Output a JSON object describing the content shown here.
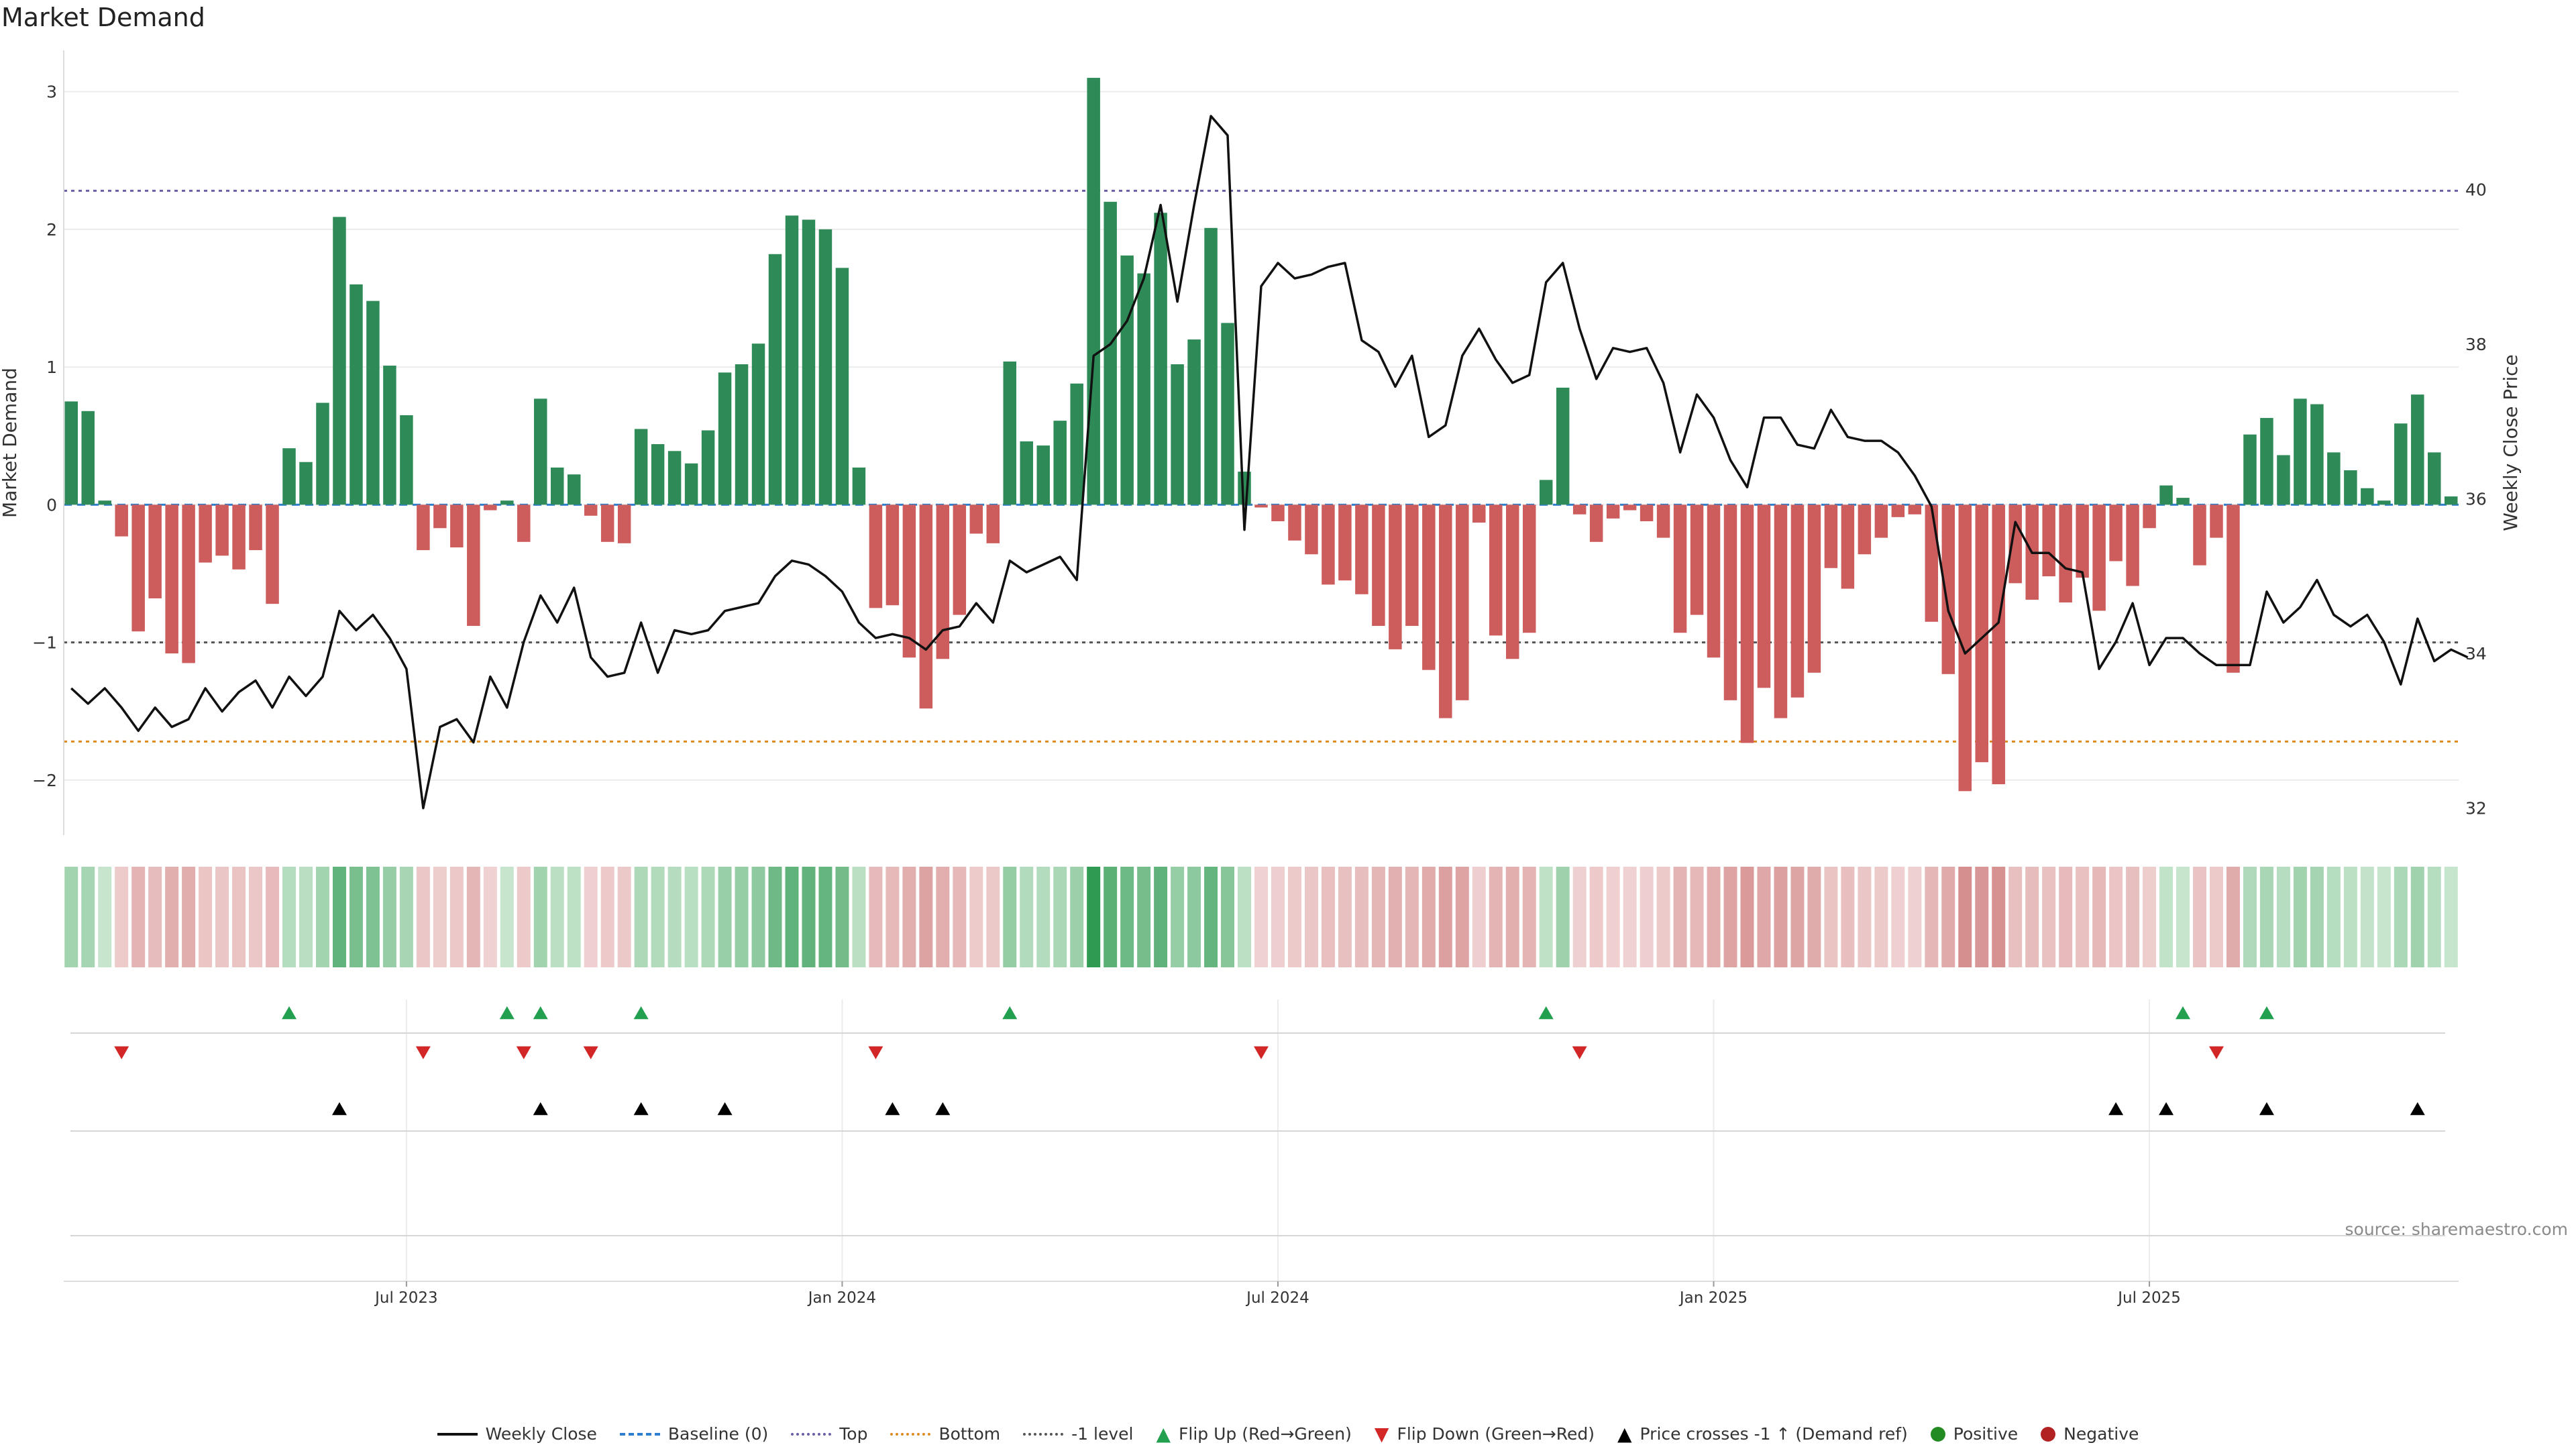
{
  "title": "Market Demand",
  "source": "source: sharemaestro.com",
  "colors": {
    "positive": "#2e8b57",
    "negative": "#cd5c5c",
    "price": "#111111",
    "top": "#6b5ca5",
    "bottom": "#e08a1e",
    "minus1": "#555555",
    "flip_up": "#22a050",
    "flip_down": "#d32626",
    "cross": "#000000"
  },
  "chart_data": {
    "type": "bar",
    "title": "Market Demand",
    "ylabel": "Market Demand",
    "y2label": "Weekly Close Price",
    "ylim": [
      -2.4,
      3.3
    ],
    "y2lim": [
      31.65,
      41.8
    ],
    "yticks": [
      -2,
      -1,
      0,
      1,
      2,
      3
    ],
    "y2ticks": [
      32,
      34,
      36,
      38,
      40
    ],
    "ytick_labels": [
      "−2",
      "−1",
      "0",
      "1",
      "2",
      "3"
    ],
    "y2tick_labels": [
      "32",
      "34",
      "36",
      "38",
      "40"
    ],
    "date_ticks": [
      {
        "label": "Jul 2023",
        "week": 20
      },
      {
        "label": "Jan 2024",
        "week": 46
      },
      {
        "label": "Jul 2024",
        "week": 72
      },
      {
        "label": "Jan 2025",
        "week": 98
      },
      {
        "label": "Jul 2025",
        "week": 124
      }
    ],
    "reference_lines": {
      "top": 2.28,
      "bottom": -1.72,
      "minus_one": -1.0,
      "baseline": 0
    },
    "demand": [
      0.75,
      0.68,
      0.03,
      -0.23,
      -0.92,
      -0.68,
      -1.08,
      -1.15,
      -0.42,
      -0.37,
      -0.47,
      -0.33,
      -0.72,
      0.41,
      0.31,
      0.74,
      2.09,
      1.6,
      1.48,
      1.01,
      0.65,
      -0.33,
      -0.17,
      -0.31,
      -0.88,
      -0.04,
      0.03,
      -0.27,
      0.77,
      0.27,
      0.22,
      -0.08,
      -0.27,
      -0.28,
      0.55,
      0.44,
      0.39,
      0.3,
      0.54,
      0.96,
      1.02,
      1.17,
      1.82,
      2.1,
      2.07,
      2.0,
      1.72,
      0.27,
      -0.75,
      -0.73,
      -1.11,
      -1.48,
      -1.12,
      -0.8,
      -0.21,
      -0.28,
      1.04,
      0.46,
      0.43,
      0.61,
      0.88,
      3.1,
      2.2,
      1.81,
      1.68,
      2.12,
      1.02,
      1.2,
      2.01,
      1.32,
      0.24,
      -0.02,
      -0.12,
      -0.26,
      -0.36,
      -0.58,
      -0.55,
      -0.65,
      -0.88,
      -1.05,
      -0.88,
      -1.2,
      -1.55,
      -1.42,
      -0.13,
      -0.95,
      -1.12,
      -0.93,
      0.18,
      0.85,
      -0.07,
      -0.27,
      -0.1,
      -0.04,
      -0.12,
      -0.24,
      -0.93,
      -0.8,
      -1.11,
      -1.42,
      -1.73,
      -1.33,
      -1.55,
      -1.4,
      -1.22,
      -0.46,
      -0.61,
      -0.36,
      -0.24,
      -0.09,
      -0.07,
      -0.85,
      -1.23,
      -2.08,
      -1.87,
      -2.03,
      -0.57,
      -0.69,
      -0.52,
      -0.71,
      -0.53,
      -0.77,
      -0.41,
      -0.59,
      -0.17,
      0.14,
      0.05,
      -0.44,
      -0.24,
      -1.22,
      0.51,
      0.63,
      0.36,
      0.77,
      0.73,
      0.38,
      0.25,
      0.12,
      0.03,
      0.59,
      0.8,
      0.38,
      0.06
    ],
    "weekly_close": [
      33.55,
      33.35,
      33.55,
      33.3,
      33.0,
      33.3,
      33.05,
      33.15,
      33.55,
      33.25,
      33.5,
      33.65,
      33.3,
      33.7,
      33.45,
      33.7,
      34.55,
      34.3,
      34.5,
      34.2,
      33.8,
      32.0,
      33.05,
      33.15,
      32.85,
      33.7,
      33.3,
      34.15,
      34.75,
      34.4,
      34.85,
      33.95,
      33.7,
      33.75,
      34.4,
      33.75,
      34.3,
      34.25,
      34.3,
      34.55,
      34.6,
      34.65,
      35.0,
      35.2,
      35.15,
      35.0,
      34.8,
      34.4,
      34.2,
      34.25,
      34.2,
      34.05,
      34.3,
      34.35,
      34.65,
      34.4,
      35.2,
      35.05,
      35.15,
      35.25,
      34.95,
      37.85,
      38.0,
      38.3,
      38.85,
      39.8,
      38.55,
      39.8,
      40.95,
      40.7,
      35.6,
      38.75,
      39.05,
      38.85,
      38.9,
      39.0,
      39.05,
      38.05,
      37.9,
      37.45,
      37.85,
      36.8,
      36.95,
      37.85,
      38.2,
      37.8,
      37.5,
      37.6,
      38.8,
      39.05,
      38.2,
      37.55,
      37.95,
      37.9,
      37.95,
      37.5,
      36.6,
      37.35,
      37.05,
      36.5,
      36.15,
      37.05,
      37.05,
      36.7,
      36.65,
      37.15,
      36.8,
      36.75,
      36.75,
      36.6,
      36.3,
      35.9,
      34.55,
      34.0,
      34.2,
      34.4,
      35.7,
      35.3,
      35.3,
      35.1,
      35.05,
      33.8,
      34.15,
      34.65,
      33.85,
      34.2,
      34.2,
      34.0,
      33.85,
      33.85,
      33.85,
      34.8,
      34.4,
      34.6,
      34.95,
      34.5,
      34.35,
      34.5,
      34.15,
      33.6,
      34.45,
      33.9,
      34.05,
      33.95
    ],
    "flip_up_weeks": [
      13,
      26,
      28,
      34,
      56,
      88,
      126,
      131
    ],
    "flip_down_weeks": [
      3,
      21,
      27,
      31,
      48,
      71,
      90,
      128
    ],
    "price_cross_weeks": [
      16,
      28,
      34,
      39,
      49,
      52,
      122,
      125,
      131,
      140
    ]
  },
  "legend": [
    {
      "label": "Weekly Close",
      "key": "price"
    },
    {
      "label": "Baseline (0)",
      "key": "baseline"
    },
    {
      "label": "Top",
      "key": "top"
    },
    {
      "label": "Bottom",
      "key": "bottom"
    },
    {
      "label": "-1 level",
      "key": "minus1"
    },
    {
      "label": "Flip Up (Red→Green)",
      "key": "flip_up"
    },
    {
      "label": "Flip Down (Green→Red)",
      "key": "flip_down"
    },
    {
      "label": "Price crosses -1 ↑ (Demand ref)",
      "key": "cross"
    },
    {
      "label": "Positive",
      "key": "positive"
    },
    {
      "label": "Negative",
      "key": "negative"
    }
  ]
}
